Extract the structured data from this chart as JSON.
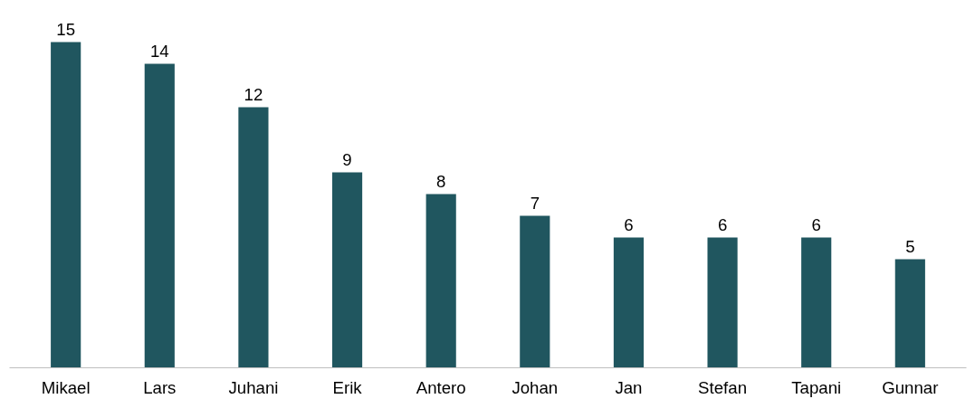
{
  "chart_data": {
    "type": "bar",
    "categories": [
      "Mikael",
      "Lars",
      "Juhani",
      "Erik",
      "Antero",
      "Johan",
      "Jan",
      "Stefan",
      "Tapani",
      "Gunnar"
    ],
    "values": [
      15,
      14,
      12,
      9,
      8,
      7,
      6,
      6,
      6,
      5
    ],
    "color": "#20565f",
    "data_labels": true
  }
}
